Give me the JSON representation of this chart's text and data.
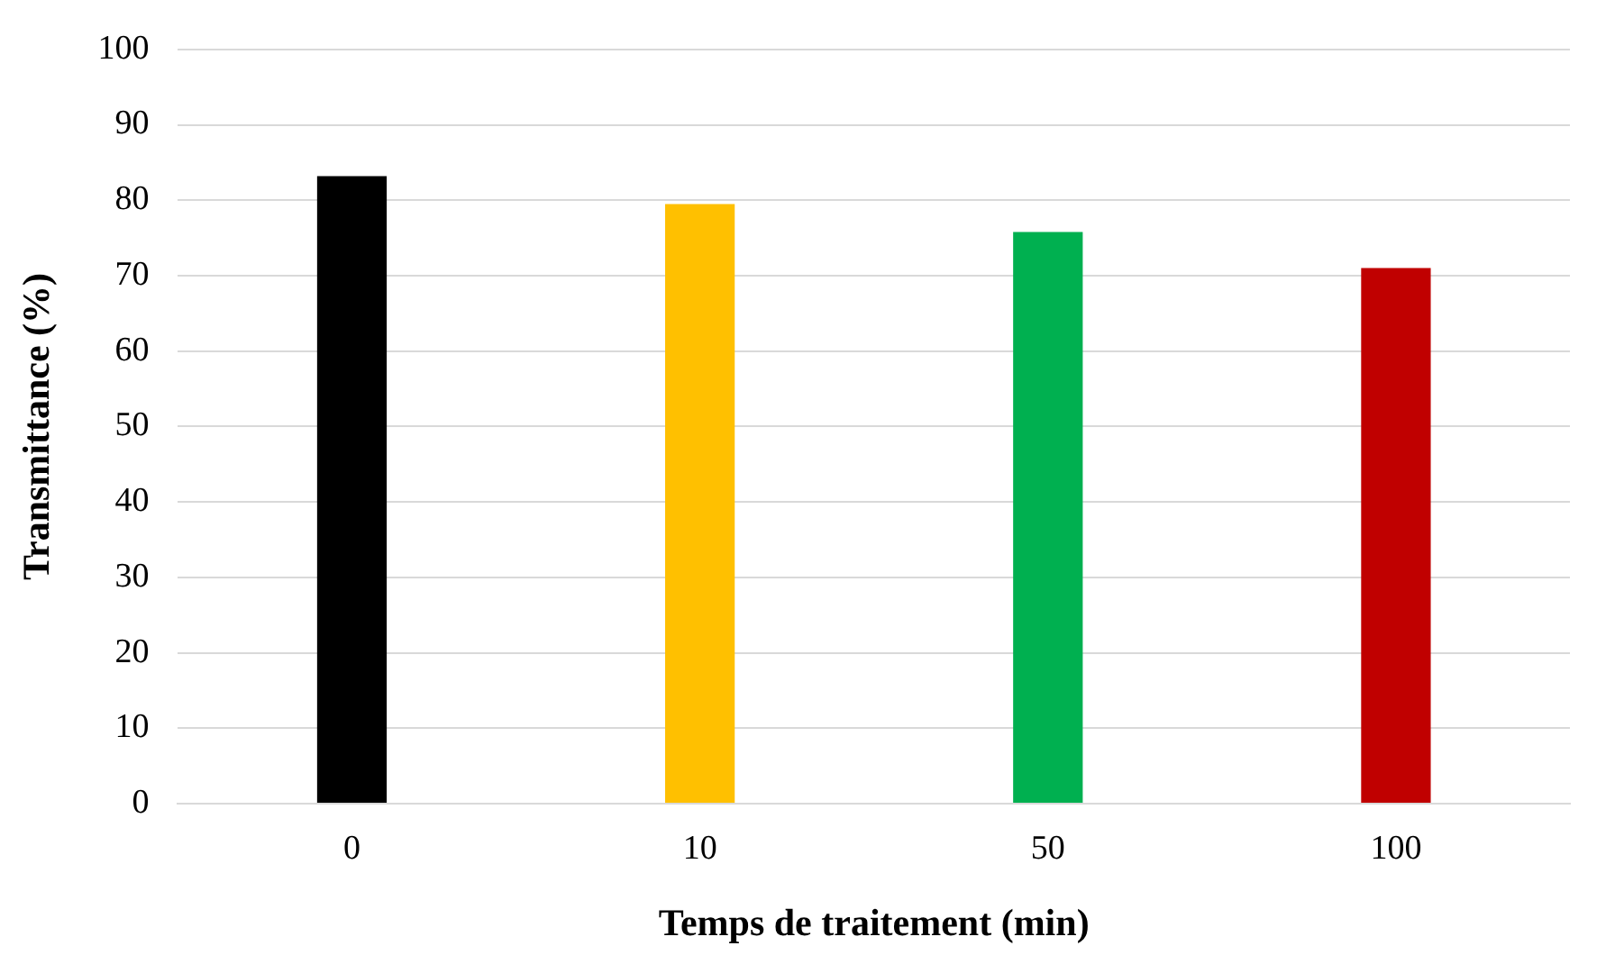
{
  "chart_data": {
    "type": "bar",
    "xlabel": "Temps de traitement (min)",
    "ylabel": "Transmittance (%)",
    "categories": [
      "0",
      "10",
      "50",
      "100"
    ],
    "values": [
      83.2,
      79.5,
      75.8,
      71.0
    ],
    "colors": [
      "#000000",
      "#ffc000",
      "#00b050",
      "#c00000"
    ],
    "ylim": [
      0,
      100
    ],
    "yticks": [
      0,
      10,
      20,
      30,
      40,
      50,
      60,
      70,
      80,
      90,
      100
    ],
    "grid": "y",
    "legend": false
  }
}
